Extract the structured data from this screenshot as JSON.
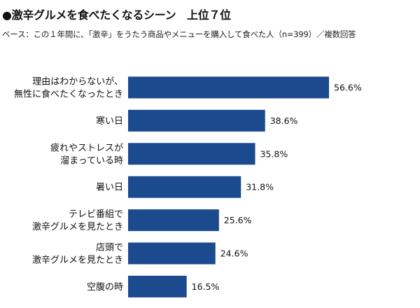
{
  "title": "●激辛グルメを食べたくなるシーン　上位７位",
  "subtitle": "ベース：この１年間に、「激辛」をうたう商品やメニューを購入して食べた人（n=399）／複数回答",
  "colors": {
    "bar": "#1b4a8f",
    "text": "#111111"
  },
  "chart_data": {
    "type": "bar",
    "orientation": "horizontal",
    "title": "激辛グルメを食べたくなるシーン　上位７位",
    "xlabel": "",
    "ylabel": "",
    "unit": "%",
    "xlim": [
      0,
      60
    ],
    "categories": [
      [
        "理由はわからないが、",
        "無性に食べたくなったとき"
      ],
      [
        "寒い日"
      ],
      [
        "疲れやストレスが",
        "溜まっている時"
      ],
      [
        "暑い日"
      ],
      [
        "テレビ番組で",
        "激辛グルメを見たとき"
      ],
      [
        "店頭で",
        "激辛グルメを見たとき"
      ],
      [
        "空腹の時"
      ]
    ],
    "values": [
      56.6,
      38.6,
      35.8,
      31.8,
      25.6,
      24.6,
      16.5
    ],
    "value_labels": [
      "56.6%",
      "38.6%",
      "35.8%",
      "31.8%",
      "25.6%",
      "24.6%",
      "16.5%"
    ]
  }
}
